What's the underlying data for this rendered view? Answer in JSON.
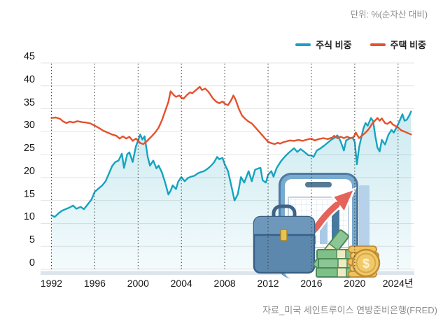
{
  "header": {
    "unit_label": "단위: %(순자산 대비)"
  },
  "legend": [
    {
      "label": "주식 비중",
      "color": "#17a3bf"
    },
    {
      "label": "주택 비중",
      "color": "#e5512d"
    }
  ],
  "source": "자료_미국 세인트루이스 연방준비은행(FRED)",
  "illustration": {
    "icons": [
      "smartphone-icon",
      "bar-chart-icon",
      "growth-arrow-icon",
      "standalone-bar",
      "briefcase-icon",
      "money-bundle-icon",
      "coin-stack-icon"
    ],
    "accent_colors": {
      "phone_blue": "#79aacf",
      "arrow_red": "#e4635a",
      "briefcase_blue": "#5d88ad",
      "money_green": "#7fbf88",
      "coin_gold": "#eec25d"
    }
  },
  "chart_data": {
    "type": "line",
    "unit_label": "단위: %(순자산 대비)",
    "legend_position": "top-right",
    "grid": {
      "horizontal_lines": true,
      "vertical_dashed_ticks": true
    },
    "x_axis": {
      "range": [
        1991,
        2025.5
      ],
      "ticks": [
        1992,
        1996,
        2000,
        2004,
        2008,
        2012,
        2016,
        2020,
        2024
      ],
      "tick_labels": [
        "1992",
        "1996",
        "2000",
        "2004",
        "2008",
        "2012",
        "2016",
        "2020",
        "2024년"
      ]
    },
    "y_axis": {
      "range": [
        0,
        45
      ],
      "ticks": [
        0,
        5,
        10,
        15,
        20,
        25,
        30,
        35,
        40,
        45
      ]
    },
    "source": "자료_미국 세인트루이스 연방준비은행(FRED)",
    "series": [
      {
        "name": "주식 비중",
        "color": "#17a3bf",
        "area_fill": true,
        "points": [
          [
            1992,
            11.8
          ],
          [
            1992.3,
            11.4
          ],
          [
            1992.7,
            12.3
          ],
          [
            1993,
            12.8
          ],
          [
            1993.4,
            13.2
          ],
          [
            1993.7,
            13.5
          ],
          [
            1994,
            13.9
          ],
          [
            1994.3,
            13.2
          ],
          [
            1994.7,
            13.6
          ],
          [
            1995,
            13.1
          ],
          [
            1995.4,
            14.3
          ],
          [
            1995.7,
            15.2
          ],
          [
            1996,
            16.9
          ],
          [
            1996.3,
            17.5
          ],
          [
            1996.7,
            18.3
          ],
          [
            1997,
            19.2
          ],
          [
            1997.3,
            20.8
          ],
          [
            1997.6,
            22.5
          ],
          [
            1997.9,
            23.4
          ],
          [
            1998.2,
            23.7
          ],
          [
            1998.5,
            25.2
          ],
          [
            1998.7,
            22.1
          ],
          [
            1999,
            25.1
          ],
          [
            1999.2,
            25.5
          ],
          [
            1999.5,
            23.4
          ],
          [
            1999.8,
            26.8
          ],
          [
            2000,
            28.1
          ],
          [
            2000.2,
            29.4
          ],
          [
            2000.4,
            28.3
          ],
          [
            2000.6,
            29
          ],
          [
            2000.9,
            24.4
          ],
          [
            2001.1,
            22.6
          ],
          [
            2001.4,
            23.7
          ],
          [
            2001.7,
            22
          ],
          [
            2001.9,
            22.6
          ],
          [
            2002.2,
            21.1
          ],
          [
            2002.5,
            18.9
          ],
          [
            2002.8,
            16.3
          ],
          [
            2003,
            17.1
          ],
          [
            2003.2,
            18.3
          ],
          [
            2003.5,
            17.5
          ],
          [
            2003.7,
            19.1
          ],
          [
            2004,
            20.1
          ],
          [
            2004.3,
            19.2
          ],
          [
            2004.6,
            19.9
          ],
          [
            2004.9,
            20.2
          ],
          [
            2005.2,
            20.4
          ],
          [
            2005.5,
            20.9
          ],
          [
            2005.8,
            21.2
          ],
          [
            2006.1,
            21.4
          ],
          [
            2006.4,
            21.9
          ],
          [
            2006.7,
            22.5
          ],
          [
            2007,
            23.3
          ],
          [
            2007.3,
            24.5
          ],
          [
            2007.5,
            24
          ],
          [
            2007.8,
            24.3
          ],
          [
            2008,
            22.9
          ],
          [
            2008.3,
            21.4
          ],
          [
            2008.6,
            18.3
          ],
          [
            2008.9,
            15
          ],
          [
            2009.2,
            16.3
          ],
          [
            2009.5,
            20.1
          ],
          [
            2009.8,
            18.9
          ],
          [
            2010.2,
            21.4
          ],
          [
            2010.5,
            19.2
          ],
          [
            2010.8,
            21.7
          ],
          [
            2011.1,
            22
          ],
          [
            2011.3,
            22.1
          ],
          [
            2011.5,
            19.4
          ],
          [
            2011.8,
            18.9
          ],
          [
            2012,
            20.6
          ],
          [
            2012.3,
            21.4
          ],
          [
            2012.5,
            20.2
          ],
          [
            2012.8,
            22.1
          ],
          [
            2013.2,
            23.6
          ],
          [
            2013.6,
            24.7
          ],
          [
            2013.9,
            25.4
          ],
          [
            2014.4,
            26.4
          ],
          [
            2014.7,
            25.6
          ],
          [
            2015,
            26.2
          ],
          [
            2015.3,
            25.7
          ],
          [
            2015.7,
            24.9
          ],
          [
            2016,
            24.8
          ],
          [
            2016.2,
            24.5
          ],
          [
            2016.5,
            25.9
          ],
          [
            2016.8,
            26.3
          ],
          [
            2017.2,
            27
          ],
          [
            2017.5,
            27.6
          ],
          [
            2017.8,
            28.2
          ],
          [
            2018.1,
            28.6
          ],
          [
            2018.4,
            29.2
          ],
          [
            2018.7,
            27.9
          ],
          [
            2019,
            25.9
          ],
          [
            2019.2,
            28.1
          ],
          [
            2019.5,
            28.5
          ],
          [
            2019.8,
            28.7
          ],
          [
            2020,
            27.8
          ],
          [
            2020.2,
            22.9
          ],
          [
            2020.4,
            26.6
          ],
          [
            2020.6,
            28.7
          ],
          [
            2020.8,
            30.7
          ],
          [
            2021,
            31.9
          ],
          [
            2021.2,
            31.3
          ],
          [
            2021.5,
            33
          ],
          [
            2021.7,
            32.3
          ],
          [
            2021.9,
            29
          ],
          [
            2022.1,
            26.5
          ],
          [
            2022.3,
            25.7
          ],
          [
            2022.5,
            28.2
          ],
          [
            2022.8,
            27.2
          ],
          [
            2023.1,
            29.3
          ],
          [
            2023.4,
            30.4
          ],
          [
            2023.6,
            29.8
          ],
          [
            2023.9,
            31.1
          ],
          [
            2024.1,
            32.1
          ],
          [
            2024.4,
            33.8
          ],
          [
            2024.6,
            32.4
          ],
          [
            2024.8,
            32.6
          ],
          [
            2025,
            33.4
          ],
          [
            2025.2,
            34.4
          ]
        ]
      },
      {
        "name": "주택 비중",
        "color": "#e5512d",
        "area_fill": false,
        "points": [
          [
            1992,
            33
          ],
          [
            1992.4,
            33.1
          ],
          [
            1992.8,
            32.8
          ],
          [
            1993.1,
            32.2
          ],
          [
            1993.4,
            31.9
          ],
          [
            1993.7,
            32.2
          ],
          [
            1994,
            32
          ],
          [
            1994.4,
            32.3
          ],
          [
            1994.8,
            32.1
          ],
          [
            1995.2,
            32
          ],
          [
            1995.6,
            31.8
          ],
          [
            1996,
            31.3
          ],
          [
            1996.4,
            30.8
          ],
          [
            1996.8,
            30.2
          ],
          [
            1997.2,
            29.8
          ],
          [
            1997.6,
            29.4
          ],
          [
            1998,
            29.1
          ],
          [
            1998.3,
            28.5
          ],
          [
            1998.6,
            29
          ],
          [
            1998.9,
            28.5
          ],
          [
            1999.2,
            28.9
          ],
          [
            1999.5,
            28
          ],
          [
            1999.8,
            28.5
          ],
          [
            2000,
            28.1
          ],
          [
            2000.2,
            27.5
          ],
          [
            2000.5,
            27.3
          ],
          [
            2000.8,
            27.9
          ],
          [
            2001,
            28.4
          ],
          [
            2001.3,
            29.1
          ],
          [
            2001.6,
            29.9
          ],
          [
            2001.9,
            30.9
          ],
          [
            2002.2,
            32.5
          ],
          [
            2002.5,
            34.5
          ],
          [
            2002.8,
            36.5
          ],
          [
            2003,
            38.8
          ],
          [
            2003.3,
            38
          ],
          [
            2003.5,
            37.6
          ],
          [
            2003.8,
            37.9
          ],
          [
            2004,
            37.4
          ],
          [
            2004.2,
            37.2
          ],
          [
            2004.5,
            38
          ],
          [
            2004.8,
            38.6
          ],
          [
            2005,
            38.4
          ],
          [
            2005.3,
            39
          ],
          [
            2005.7,
            39.8
          ],
          [
            2005.9,
            39.1
          ],
          [
            2006.2,
            39.4
          ],
          [
            2006.5,
            38.7
          ],
          [
            2006.9,
            37.3
          ],
          [
            2007.2,
            36.6
          ],
          [
            2007.5,
            36.2
          ],
          [
            2007.8,
            36.6
          ],
          [
            2008,
            36.1
          ],
          [
            2008.3,
            35.8
          ],
          [
            2008.6,
            36.9
          ],
          [
            2008.8,
            37.9
          ],
          [
            2009,
            37
          ],
          [
            2009.3,
            35
          ],
          [
            2009.6,
            33.5
          ],
          [
            2009.9,
            32.8
          ],
          [
            2010.2,
            32.2
          ],
          [
            2010.5,
            31.8
          ],
          [
            2010.8,
            31
          ],
          [
            2011.1,
            30.2
          ],
          [
            2011.4,
            29.4
          ],
          [
            2011.7,
            28.6
          ],
          [
            2012,
            27.8
          ],
          [
            2012.3,
            27.5
          ],
          [
            2012.6,
            27.3
          ],
          [
            2012.9,
            27.6
          ],
          [
            2013.1,
            27.4
          ],
          [
            2013.4,
            27.7
          ],
          [
            2013.7,
            27.9
          ],
          [
            2014,
            28.1
          ],
          [
            2014.4,
            28
          ],
          [
            2014.8,
            28.2
          ],
          [
            2015.2,
            28
          ],
          [
            2015.6,
            28.3
          ],
          [
            2016,
            28.5
          ],
          [
            2016.3,
            28.1
          ],
          [
            2016.7,
            28.4
          ],
          [
            2017.1,
            28.6
          ],
          [
            2017.5,
            28.4
          ],
          [
            2017.9,
            28.7
          ],
          [
            2018.1,
            29.1
          ],
          [
            2018.4,
            28.6
          ],
          [
            2018.7,
            28.9
          ],
          [
            2019,
            28.6
          ],
          [
            2019.3,
            28.9
          ],
          [
            2019.6,
            28.6
          ],
          [
            2019.9,
            28.8
          ],
          [
            2020.1,
            29.8
          ],
          [
            2020.4,
            28.6
          ],
          [
            2020.7,
            29.2
          ],
          [
            2021,
            29.8
          ],
          [
            2021.3,
            30.6
          ],
          [
            2021.6,
            31.7
          ],
          [
            2021.9,
            32.5
          ],
          [
            2022.1,
            33
          ],
          [
            2022.3,
            32.4
          ],
          [
            2022.5,
            32.9
          ],
          [
            2022.8,
            31.9
          ],
          [
            2023,
            31.7
          ],
          [
            2023.3,
            32.2
          ],
          [
            2023.5,
            31.6
          ],
          [
            2023.8,
            31.2
          ],
          [
            2024,
            30.9
          ],
          [
            2024.3,
            30.3
          ],
          [
            2024.6,
            30
          ],
          [
            2024.9,
            29.7
          ],
          [
            2025.2,
            29.4
          ]
        ]
      }
    ]
  }
}
